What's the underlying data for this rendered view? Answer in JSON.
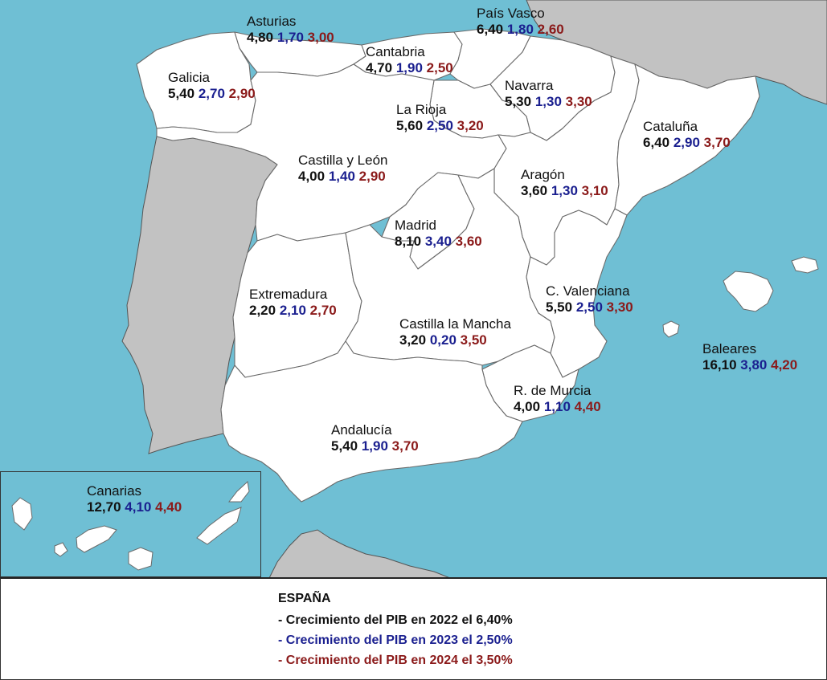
{
  "colors": {
    "v2022": "#111111",
    "v2023": "#1a1f8f",
    "v2024": "#8b1a1a",
    "sea": "#6fbfd4",
    "foreign": "#c2c2c2"
  },
  "regions": {
    "asturias": {
      "name": "Asturias",
      "v2022": "4,80",
      "v2023": "1,70",
      "v2024": "3,00"
    },
    "pais_vasco": {
      "name": "País Vasco",
      "v2022": "6,40",
      "v2023": "1,80",
      "v2024": "2,60"
    },
    "cantabria": {
      "name": "Cantabria",
      "v2022": "4,70",
      "v2023": "1,90",
      "v2024": "2,50"
    },
    "galicia": {
      "name": "Galicia",
      "v2022": "5,40",
      "v2023": "2,70",
      "v2024": "2,90"
    },
    "navarra": {
      "name": "Navarra",
      "v2022": "5,30",
      "v2023": "1,30",
      "v2024": "3,30"
    },
    "la_rioja": {
      "name": "La Rioja",
      "v2022": "5,60",
      "v2023": "2,50",
      "v2024": "3,20"
    },
    "cataluna": {
      "name": "Cataluña",
      "v2022": "6,40",
      "v2023": "2,90",
      "v2024": "3,70"
    },
    "castilla_leon": {
      "name": "Castilla y León",
      "v2022": "4,00",
      "v2023": "1,40",
      "v2024": "2,90"
    },
    "aragon": {
      "name": "Aragón",
      "v2022": "3,60",
      "v2023": "1,30",
      "v2024": "3,10"
    },
    "madrid": {
      "name": "Madrid",
      "v2022": "8,10",
      "v2023": "3,40",
      "v2024": "3,60"
    },
    "extremadura": {
      "name": "Extremadura",
      "v2022": "2,20",
      "v2023": "2,10",
      "v2024": "2,70"
    },
    "c_valenciana": {
      "name": "C. Valenciana",
      "v2022": "5,50",
      "v2023": "2,50",
      "v2024": "3,30"
    },
    "castilla_mancha": {
      "name": "Castilla la Mancha",
      "v2022": "3,20",
      "v2023": "0,20",
      "v2024": "3,50"
    },
    "baleares": {
      "name": "Baleares",
      "v2022": "16,10",
      "v2023": "3,80",
      "v2024": "4,20"
    },
    "murcia": {
      "name": "R. de Murcia",
      "v2022": "4,00",
      "v2023": "1,10",
      "v2024": "4,40"
    },
    "andalucia": {
      "name": "Andalucía",
      "v2022": "5,40",
      "v2023": "1,90",
      "v2024": "3,70"
    },
    "canarias": {
      "name": "Canarias",
      "v2022": "12,70",
      "v2023": "4,10",
      "v2024": "4,40"
    }
  },
  "legend": {
    "title": "ESPAÑA",
    "line2022": "- Crecimiento del PIB en 2022 el 6,40%",
    "line2023": "- Crecimiento del PIB en 2023 el 2,50%",
    "line2024": "- Crecimiento del PIB en 2024 el 3,50%"
  }
}
